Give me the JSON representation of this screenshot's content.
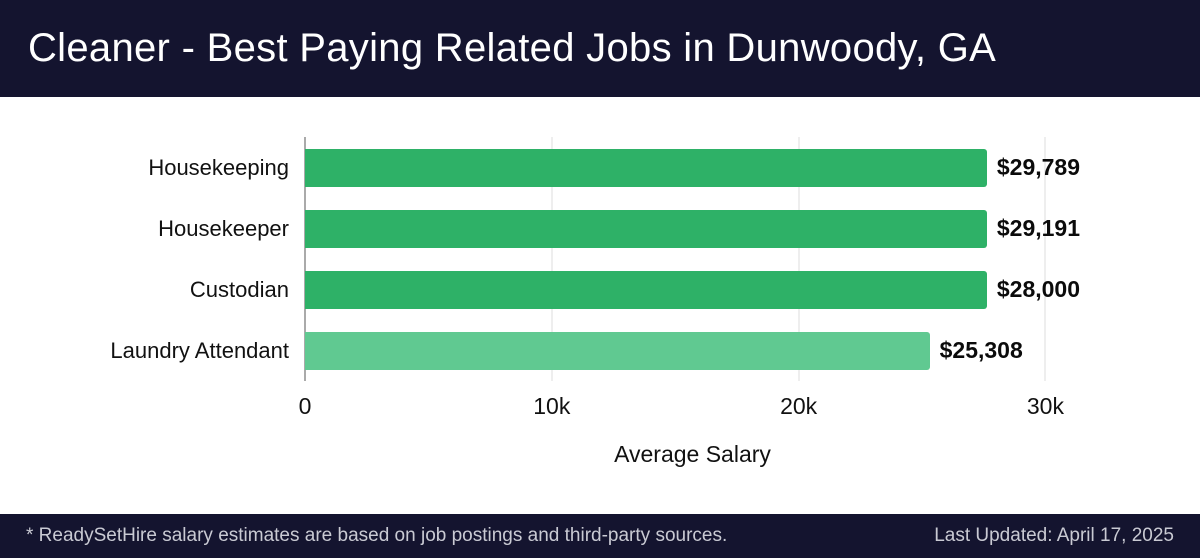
{
  "header": {
    "title": "Cleaner - Best Paying Related Jobs in Dunwoody, GA",
    "background": "#14142f",
    "text_color": "#ffffff"
  },
  "chart_data": {
    "type": "bar",
    "orientation": "horizontal",
    "categories": [
      "Housekeeping",
      "Housekeeper",
      "Custodian",
      "Laundry Attendant"
    ],
    "values": [
      29789,
      29191,
      28000,
      25308
    ],
    "value_labels": [
      "$29,789",
      "$29,191",
      "$28,000",
      "$25,308"
    ],
    "bar_colors": [
      "#2eb167",
      "#2eb167",
      "#2eb167",
      "#60c991"
    ],
    "title": "Cleaner - Best Paying Related Jobs in Dunwoody, GA",
    "xlabel": "Average Salary",
    "ylabel": "",
    "x_ticks": [
      {
        "value": 0,
        "label": "0"
      },
      {
        "value": 10000,
        "label": "10k"
      },
      {
        "value": 20000,
        "label": "20k"
      },
      {
        "value": 30000,
        "label": "30k"
      }
    ],
    "xlim": [
      0,
      31400
    ],
    "grid": true,
    "legend": false
  },
  "footer": {
    "note": "* ReadySetHire salary estimates are based on job postings and third-party sources.",
    "last_updated": "Last Updated: April 17, 2025"
  }
}
